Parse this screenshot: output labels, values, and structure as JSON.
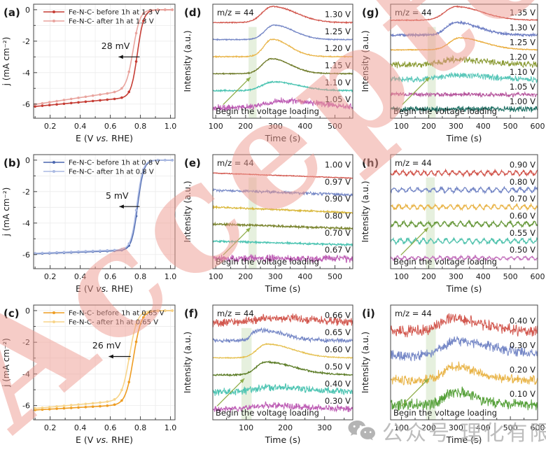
{
  "watermark": {
    "text": "Accepted",
    "color": "#ef9a90"
  },
  "footer_watermark": {
    "icon": "wechat-icon",
    "text": "公众号 理化有限公司"
  },
  "chart_data": [
    {
      "id": "a",
      "type": "line",
      "kind": "lsv",
      "panel_label": "(a)",
      "xlabel_parts": [
        "E (V ",
        "vs.",
        " RHE)"
      ],
      "ylabel": "j (mA cm⁻²)",
      "xlim": [
        0.09,
        1.03
      ],
      "xticks": [
        0.2,
        0.4,
        0.6,
        0.8,
        1.0
      ],
      "x_minor": 0.1,
      "ylim": [
        -6.9,
        0.35
      ],
      "yticks": [
        0,
        -2,
        -4,
        -6
      ],
      "y_minor": 1,
      "grid": true,
      "legend_position": "top-left",
      "annotation": {
        "text": "28 mV",
        "tx": 0.635,
        "ty": -2.5,
        "arrow": {
          "x1": 0.795,
          "x2": 0.655,
          "y": -3.0
        }
      },
      "series": [
        {
          "name": "Fe-N-C- before 1h at 1.3 V",
          "color": "#c63d35",
          "e_half": 0.78,
          "j_lim": -6.15,
          "plateau_slope": 0.9,
          "k": 0.021
        },
        {
          "name": "Fe-N-C- after  1h at 1.3 V",
          "color": "#e9a49e",
          "e_half": 0.752,
          "j_lim": -6.02,
          "plateau_slope": 1.45,
          "k": 0.023
        }
      ]
    },
    {
      "id": "b",
      "type": "line",
      "kind": "lsv",
      "panel_label": "(b)",
      "xlabel_parts": [
        "E (V ",
        "vs.",
        " RHE)"
      ],
      "ylabel": "j (mA cm⁻²)",
      "xlim": [
        0.09,
        1.03
      ],
      "xticks": [
        0.2,
        0.4,
        0.6,
        0.8,
        1.0
      ],
      "x_minor": 0.1,
      "ylim": [
        -6.9,
        0.35
      ],
      "yticks": [
        0,
        -2,
        -4,
        -6
      ],
      "y_minor": 1,
      "grid": true,
      "legend_position": "top-left",
      "annotation": {
        "text": "5 mV",
        "tx": 0.645,
        "ty": -2.45,
        "arrow": {
          "x1": 0.795,
          "x2": 0.66,
          "y": -2.95
        }
      },
      "series": [
        {
          "name": "Fe-N-C- before 1h at 0.8 V",
          "color": "#4a66ae",
          "e_half": 0.782,
          "j_lim": -5.95,
          "plateau_slope": 0.35,
          "k": 0.02
        },
        {
          "name": "Fe-N-C- after  1h at 0.8 V",
          "color": "#aab9e2",
          "e_half": 0.777,
          "j_lim": -5.92,
          "plateau_slope": 0.38,
          "k": 0.02
        }
      ]
    },
    {
      "id": "c",
      "type": "line",
      "kind": "lsv",
      "panel_label": "(c)",
      "xlabel_parts": [
        "E (V ",
        "vs.",
        " RHE)"
      ],
      "ylabel": "j (mA cm⁻²)",
      "xlim": [
        0.09,
        1.03
      ],
      "xticks": [
        0.2,
        0.4,
        0.6,
        0.8,
        1.0
      ],
      "x_minor": 0.1,
      "ylim": [
        -6.9,
        0.35
      ],
      "yticks": [
        0,
        -2,
        -4,
        -6
      ],
      "y_minor": 1,
      "grid": true,
      "legend_position": "top-left",
      "annotation": {
        "text": "26 mV",
        "tx": 0.575,
        "ty": -2.4,
        "arrow": {
          "x1": 0.735,
          "x2": 0.59,
          "y": -2.9
        }
      },
      "series": [
        {
          "name": "Fe-N-C- before 1h at 0.65 V",
          "color": "#ee9d23",
          "e_half": 0.754,
          "j_lim": -6.28,
          "plateau_slope": 0.55,
          "k": 0.026
        },
        {
          "name": "Fe-N-C- after  1h at 0.65 V",
          "color": "#f7d489",
          "e_half": 0.728,
          "j_lim": -6.18,
          "plateau_slope": 0.85,
          "k": 0.026
        }
      ]
    },
    {
      "id": "d",
      "type": "line",
      "kind": "ms",
      "panel_label": "(d)",
      "header": "m/z = 44",
      "xlabel": "Time (s)",
      "ylabel": "Intensity (a.u.)",
      "xlim": [
        90,
        560
      ],
      "xticks": [
        100,
        200,
        300,
        400,
        500
      ],
      "x_minor": 50,
      "band": [
        210,
        237
      ],
      "band_label": "Begin the voltage loading",
      "traces": [
        {
          "label": "1.30 V",
          "color": "#d2574e",
          "noise": 0.02,
          "peak": {
            "t": 290,
            "wl": 34,
            "wr": 78,
            "h": 0.95
          }
        },
        {
          "label": "1.25 V",
          "color": "#7587c6",
          "noise": 0.02,
          "peak": {
            "t": 295,
            "wl": 30,
            "wr": 66,
            "h": 0.85
          }
        },
        {
          "label": "1.20 V",
          "color": "#e9b54a",
          "noise": 0.02,
          "peak": {
            "t": 289,
            "wl": 27,
            "wr": 58,
            "h": 1.02
          }
        },
        {
          "label": "1.15 V",
          "color": "#6f7b2a",
          "noise": 0.02,
          "peak": {
            "t": 286,
            "wl": 30,
            "wr": 64,
            "h": 0.88
          }
        },
        {
          "label": "1.10 V",
          "color": "#4cc4b2",
          "noise": 0.03,
          "peak": {
            "t": 292,
            "wl": 36,
            "wr": 84,
            "h": 0.52
          }
        },
        {
          "label": "1.05 V",
          "color": "#bd5cb4",
          "noise": 0.13,
          "peak": {
            "t": 335,
            "wl": 62,
            "wr": 120,
            "h": 0.4
          }
        }
      ]
    },
    {
      "id": "e",
      "type": "line",
      "kind": "ms",
      "panel_label": "(e)",
      "header": "m/z = 44",
      "xlabel": "Time (s)",
      "ylabel": "Intensity (a.u.)",
      "xlim": [
        90,
        560
      ],
      "xticks": [
        100,
        200,
        300,
        400,
        500
      ],
      "x_minor": 50,
      "band": [
        210,
        237
      ],
      "band_label": "Begin the voltage loading",
      "traces": [
        {
          "label": "1.00 V",
          "color": "#d2574e",
          "noise": 0.015,
          "slope": 0.3
        },
        {
          "label": "0.97 V",
          "color": "#7587c6",
          "noise": 0.06,
          "slope": 0.28
        },
        {
          "label": "0.90 V",
          "color": "#d9b83c",
          "noise": 0.03,
          "slope": 0.33
        },
        {
          "label": "0.80 V",
          "color": "#7b8530",
          "noise": 0.04,
          "slope": 0.26
        },
        {
          "label": "0.70 V",
          "color": "#4cc4b2",
          "noise": 0.04,
          "slope": 0.22
        },
        {
          "label": "0.67 V",
          "color": "#bd5cb4",
          "noise": 0.15,
          "slope": 0.05
        }
      ]
    },
    {
      "id": "f",
      "type": "line",
      "kind": "ms",
      "panel_label": "(f)",
      "header": "m/z = 44",
      "xlabel": "Time (s)",
      "ylabel": "Intensity (a.u.)",
      "xlim": [
        15,
        372
      ],
      "xticks": [
        100,
        200,
        300
      ],
      "x_minor": 50,
      "band": [
        88,
        114
      ],
      "band_label": "Begin the voltage loading",
      "traces": [
        {
          "label": "0.66 V",
          "color": "#d2574e",
          "noise": 0.17,
          "peak": {
            "t": 185,
            "wl": 75,
            "wr": 95,
            "h": 0.33
          }
        },
        {
          "label": "0.65 V",
          "color": "#7587c6",
          "noise": 0.09,
          "peak": {
            "t": 130,
            "wl": 16,
            "wr": 65,
            "h": 0.62
          }
        },
        {
          "label": "0.60 V",
          "color": "#e5c050",
          "noise": 0.02,
          "peak": {
            "t": 152,
            "wl": 24,
            "wr": 68,
            "h": 0.8
          }
        },
        {
          "label": "0.50 V",
          "color": "#5f7f2b",
          "noise": 0.03,
          "peak": {
            "t": 150,
            "wl": 24,
            "wr": 74,
            "h": 0.75
          }
        },
        {
          "label": "0.40 V",
          "color": "#4cc4b2",
          "noise": 0.15,
          "peak": {
            "t": 165,
            "wl": 45,
            "wr": 95,
            "h": 0.28
          }
        },
        {
          "label": "0.30 V",
          "color": "#bd5cb4",
          "noise": 0.13,
          "peak": {
            "t": 145,
            "wl": 30,
            "wr": 95,
            "h": 0.22
          }
        }
      ]
    },
    {
      "id": "g",
      "type": "line",
      "kind": "ms",
      "panel_label": "(g)",
      "header": "m/z = 44",
      "xlabel": "Time (s)",
      "ylabel": "Intensity (a.u.)",
      "xlim": [
        60,
        600
      ],
      "xticks": [
        100,
        200,
        300,
        400,
        500,
        600
      ],
      "x_minor": 50,
      "band": [
        196,
        226
      ],
      "band_label": "Begin the voltage loading",
      "traces": [
        {
          "label": "1.35 V",
          "color": "#d2574e",
          "noise": 0.02,
          "peak": {
            "t": 300,
            "wl": 40,
            "wr": 95,
            "h": 0.92
          }
        },
        {
          "label": "1.30 V",
          "color": "#6f7fc4",
          "noise": 0.05,
          "peak": {
            "t": 298,
            "wl": 33,
            "wr": 85,
            "h": 0.85
          }
        },
        {
          "label": "1.25 V",
          "color": "#e9ac3c",
          "noise": 0.02,
          "peak": {
            "t": 312,
            "wl": 36,
            "wr": 92,
            "h": 0.8
          }
        },
        {
          "label": "1.20 V",
          "color": "#8a9a33",
          "noise": 0.15,
          "peak": {
            "t": 305,
            "wl": 55,
            "wr": 110,
            "h": 0.35
          }
        },
        {
          "label": "1.10 V",
          "color": "#57c6b8",
          "noise": 0.14,
          "peak": {
            "t": 300,
            "wl": 55,
            "wr": 110,
            "h": 0.3
          }
        },
        {
          "label": "1.05 V",
          "color": "#b5549c",
          "noise": 0.1,
          "slope": 0.03
        },
        {
          "label": "1.00 V",
          "color": "#1d6f63",
          "noise": 0.13
        }
      ]
    },
    {
      "id": "h",
      "type": "line",
      "kind": "ms",
      "panel_label": "(h)",
      "header": "m/z = 44",
      "xlabel": "Time (s)",
      "ylabel": "Intensity (a.u.)",
      "xlim": [
        60,
        600
      ],
      "xticks": [
        100,
        200,
        300,
        400,
        500,
        600
      ],
      "x_minor": 50,
      "band": [
        190,
        222
      ],
      "band_label": "Begin the voltage loading",
      "traces": [
        {
          "label": "0.90 V",
          "color": "#d2574e",
          "noise": 0.05,
          "wave": {
            "amp": 0.11,
            "period": 26,
            "phase": 0
          }
        },
        {
          "label": "0.80 V",
          "color": "#7587c6",
          "noise": 0.05,
          "wave": {
            "amp": 0.11,
            "period": 29,
            "phase": 2
          }
        },
        {
          "label": "0.70 V",
          "color": "#e9b54a",
          "noise": 0.05,
          "wave": {
            "amp": 0.11,
            "period": 27,
            "phase": 4
          }
        },
        {
          "label": "0.60 V",
          "color": "#6a9a3e",
          "noise": 0.05,
          "wave": {
            "amp": 0.12,
            "period": 30,
            "phase": 1
          }
        },
        {
          "label": "0.55 V",
          "color": "#52c3ae",
          "noise": 0.05,
          "wave": {
            "amp": 0.12,
            "period": 28,
            "phase": 3
          }
        },
        {
          "label": "0.50 V",
          "color": "#c473bd",
          "noise": 0.04,
          "wave": {
            "amp": 0.08,
            "period": 26,
            "phase": 5
          }
        }
      ]
    },
    {
      "id": "i",
      "type": "line",
      "kind": "ms",
      "panel_label": "(i)",
      "header": "m/z = 44",
      "xlabel": "Time (s)",
      "ylabel": "Intensity (a.u.)",
      "xlim": [
        60,
        600
      ],
      "xticks": [
        100,
        200,
        300,
        400,
        500,
        600
      ],
      "x_minor": 50,
      "band": [
        190,
        226
      ],
      "band_label": "Begin the voltage loading",
      "traces": [
        {
          "label": "0.40 V",
          "color": "#d2574e",
          "noise": 0.17,
          "peak": {
            "t": 285,
            "wl": 45,
            "wr": 105,
            "h": 0.55
          }
        },
        {
          "label": "0.30 V",
          "color": "#7587c6",
          "noise": 0.15,
          "peak": {
            "t": 300,
            "wl": 50,
            "wr": 140,
            "h": 0.6
          }
        },
        {
          "label": "0.20 V",
          "color": "#e9b54a",
          "noise": 0.14,
          "peak": {
            "t": 290,
            "wl": 38,
            "wr": 90,
            "h": 0.55
          }
        },
        {
          "label": "0.10 V",
          "color": "#55a038",
          "noise": 0.16,
          "peak": {
            "t": 292,
            "wl": 34,
            "wr": 80,
            "h": 0.52
          }
        }
      ]
    }
  ]
}
